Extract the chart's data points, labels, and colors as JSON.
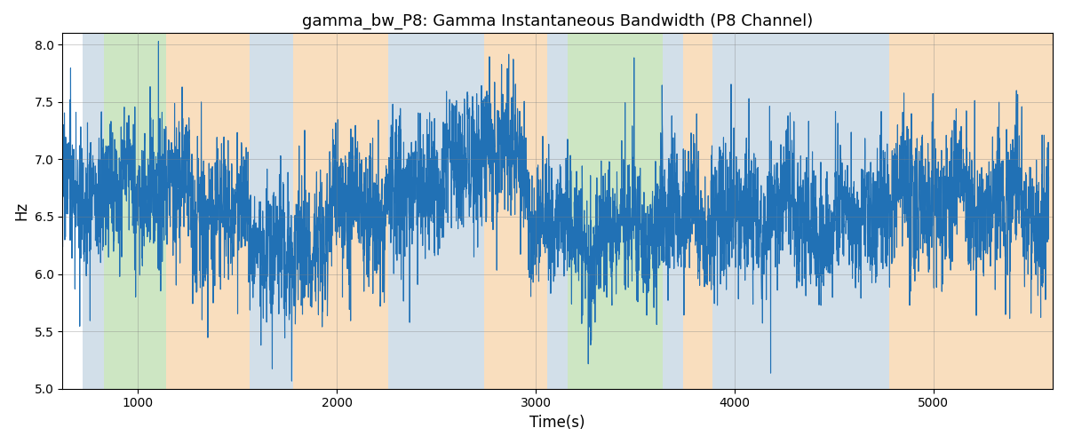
{
  "title": "gamma_bw_P8: Gamma Instantaneous Bandwidth (P8 Channel)",
  "xlabel": "Time(s)",
  "ylabel": "Hz",
  "ylim": [
    5.0,
    8.1
  ],
  "xlim": [
    620,
    5600
  ],
  "yticks": [
    5.0,
    5.5,
    6.0,
    6.5,
    7.0,
    7.5,
    8.0
  ],
  "xticks": [
    1000,
    2000,
    3000,
    4000,
    5000
  ],
  "line_color": "#2171b5",
  "line_width": 0.8,
  "bg_bands": [
    {
      "xmin": 720,
      "xmax": 830,
      "color": "#aec6d8",
      "alpha": 0.55
    },
    {
      "xmin": 830,
      "xmax": 1140,
      "color": "#90c97a",
      "alpha": 0.45
    },
    {
      "xmin": 1140,
      "xmax": 1560,
      "color": "#f5c48a",
      "alpha": 0.55
    },
    {
      "xmin": 1560,
      "xmax": 1780,
      "color": "#aec6d8",
      "alpha": 0.55
    },
    {
      "xmin": 1780,
      "xmax": 2260,
      "color": "#f5c48a",
      "alpha": 0.55
    },
    {
      "xmin": 2260,
      "xmax": 2740,
      "color": "#aec6d8",
      "alpha": 0.55
    },
    {
      "xmin": 2740,
      "xmax": 3060,
      "color": "#f5c48a",
      "alpha": 0.55
    },
    {
      "xmin": 3060,
      "xmax": 3160,
      "color": "#aec6d8",
      "alpha": 0.55
    },
    {
      "xmin": 3160,
      "xmax": 3640,
      "color": "#90c97a",
      "alpha": 0.45
    },
    {
      "xmin": 3640,
      "xmax": 3740,
      "color": "#aec6d8",
      "alpha": 0.55
    },
    {
      "xmin": 3740,
      "xmax": 3890,
      "color": "#f5c48a",
      "alpha": 0.55
    },
    {
      "xmin": 3890,
      "xmax": 4780,
      "color": "#aec6d8",
      "alpha": 0.55
    },
    {
      "xmin": 4780,
      "xmax": 5600,
      "color": "#f5c48a",
      "alpha": 0.55
    }
  ],
  "seed": 17,
  "n_points": 4960,
  "t_start": 620,
  "t_end": 5580
}
